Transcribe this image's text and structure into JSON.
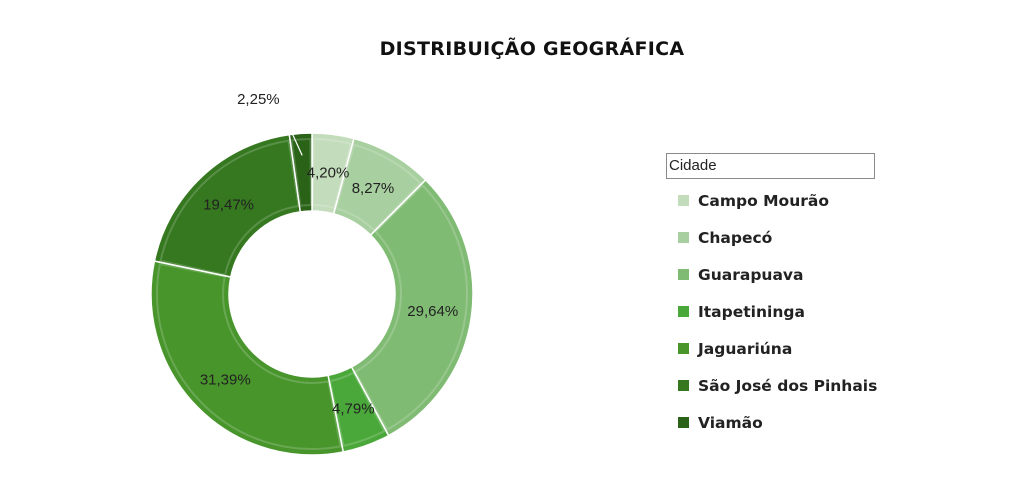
{
  "chart_data": {
    "type": "pie",
    "title": "DISTRIBUIÇÃO GEOGRÁFICA",
    "legend_title": "Cidade",
    "legend_position": "right",
    "donut": true,
    "categories": [
      "Campo Mourão",
      "Chapecó",
      "Guarapuava",
      "Itapetininga",
      "Jaguariúna",
      "São José dos Pinhais",
      "Viamão"
    ],
    "values": [
      4.2,
      8.27,
      29.64,
      4.79,
      31.39,
      19.47,
      2.25
    ],
    "labels": [
      "4,20%",
      "8,27%",
      "29,64%",
      "4,79%",
      "31,39%",
      "19,47%",
      "2,25%"
    ],
    "colors": [
      "#c3dcbb",
      "#a8cf9f",
      "#80bb74",
      "#4aa83a",
      "#48952c",
      "#35781f",
      "#2a6318"
    ]
  }
}
